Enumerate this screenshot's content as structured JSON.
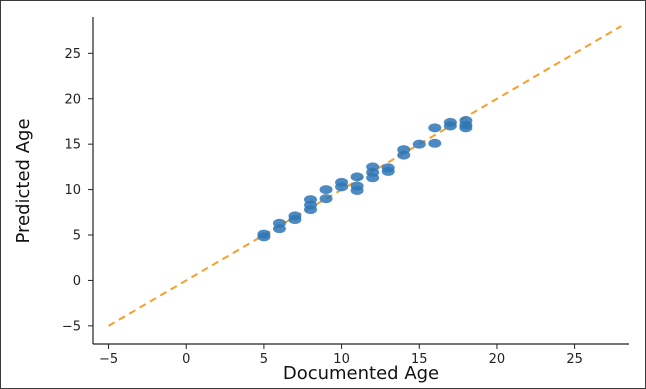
{
  "chart_data": {
    "type": "scatter",
    "title": "",
    "xlabel": "Documented Age",
    "ylabel": "Predicted Age",
    "xlim": [
      -6,
      28.5
    ],
    "ylim": [
      -7,
      29
    ],
    "xticks": [
      -5,
      0,
      5,
      10,
      15,
      20,
      25
    ],
    "yticks": [
      -5,
      0,
      5,
      10,
      15,
      20,
      25
    ],
    "grid": false,
    "colors": {
      "points": "#2e75b6",
      "reference_line": "#f5a02c",
      "axis": "#222222"
    },
    "reference_line": {
      "style": "dashed",
      "x": [
        -5,
        28
      ],
      "y": [
        -5,
        28
      ]
    },
    "points": [
      [
        5,
        4.8
      ],
      [
        5,
        5.1
      ],
      [
        6,
        5.7
      ],
      [
        6,
        6.3
      ],
      [
        7,
        6.7
      ],
      [
        7,
        7.1
      ],
      [
        8,
        7.8
      ],
      [
        8,
        8.3
      ],
      [
        8,
        8.9
      ],
      [
        9,
        9.0
      ],
      [
        9,
        10.0
      ],
      [
        10,
        10.3
      ],
      [
        10,
        10.8
      ],
      [
        11,
        9.9
      ],
      [
        11,
        10.4
      ],
      [
        11,
        11.4
      ],
      [
        12,
        11.3
      ],
      [
        12,
        11.9
      ],
      [
        12,
        12.5
      ],
      [
        13,
        12.0
      ],
      [
        13,
        12.4
      ],
      [
        14,
        13.8
      ],
      [
        14,
        14.4
      ],
      [
        15,
        15.0
      ],
      [
        16,
        15.1
      ],
      [
        16,
        16.8
      ],
      [
        17,
        17.0
      ],
      [
        17,
        17.4
      ],
      [
        18,
        16.8
      ],
      [
        18,
        17.1
      ],
      [
        18,
        17.6
      ]
    ]
  }
}
